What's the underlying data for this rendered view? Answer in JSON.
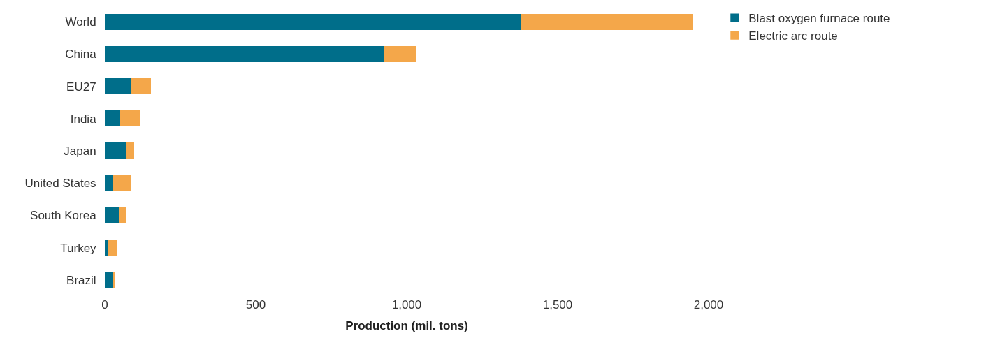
{
  "chart_data": {
    "type": "bar",
    "orientation": "horizontal",
    "stacked": true,
    "xlabel": "Production (mil. tons)",
    "categories": [
      "World",
      "China",
      "EU27",
      "India",
      "Japan",
      "United States",
      "South Korea",
      "Turkey",
      "Brazil"
    ],
    "series": [
      {
        "name": "Blast oxygen furnace route",
        "color": "#006e8a",
        "values": [
          1380,
          923,
          85,
          52,
          71,
          26,
          47,
          12,
          26
        ]
      },
      {
        "name": "Electric arc route",
        "color": "#f4a74a",
        "values": [
          570,
          109,
          68,
          66,
          26,
          61,
          24,
          28,
          9
        ]
      }
    ],
    "xlim": [
      0,
      2000
    ],
    "xticks": [
      0,
      {
        "value": 500,
        "label": "500"
      },
      {
        "value": 1000,
        "label": "1,000"
      },
      {
        "value": 1500,
        "label": "1,500"
      },
      {
        "value": 2000,
        "label": "2,000"
      }
    ],
    "grid": "x",
    "legend": "top right"
  }
}
